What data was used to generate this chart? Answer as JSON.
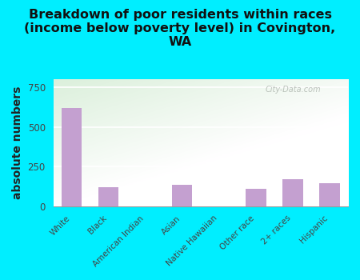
{
  "title": "Breakdown of poor residents within races\n(income below poverty level) in Covington,\nWA",
  "categories": [
    "White",
    "Black",
    "American Indian",
    "Asian",
    "Native Hawaiian",
    "Other race",
    "2+ races",
    "Hispanic"
  ],
  "values": [
    620,
    120,
    0,
    135,
    0,
    110,
    170,
    145
  ],
  "bar_color": "#c4a0d0",
  "ylabel": "absolute numbers",
  "ylim": [
    0,
    800
  ],
  "yticks": [
    0,
    250,
    500,
    750
  ],
  "background_outer": "#00eeff",
  "watermark": "City-Data.com",
  "title_fontsize": 11.5,
  "ylabel_fontsize": 10
}
